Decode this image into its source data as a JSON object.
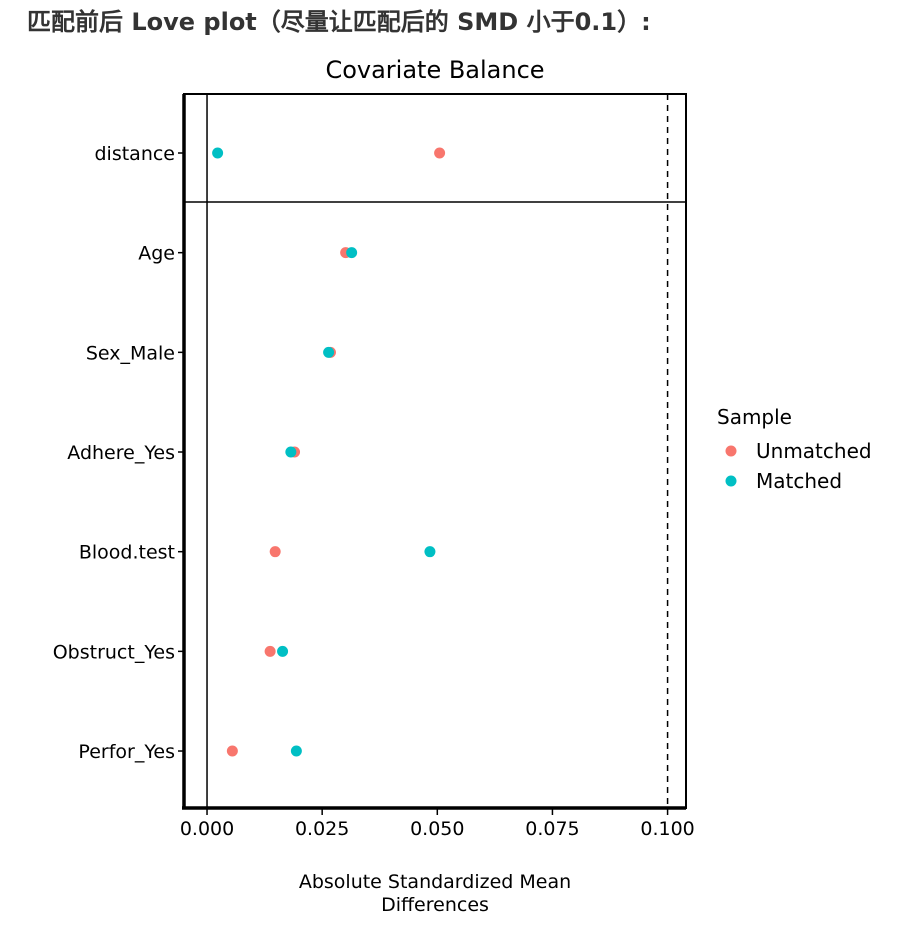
{
  "heading": "匹配前后 Love plot（尽量让匹配后的 SMD 小于0.1）:",
  "chart_data": {
    "type": "scatter",
    "title": "Covariate Balance",
    "xlabel_lines": [
      "Absolute Standardized Mean",
      "Differences"
    ],
    "ylabel": "",
    "xlim": [
      -0.005,
      0.104
    ],
    "xticks": [
      0.0,
      0.025,
      0.05,
      0.075,
      0.1
    ],
    "xtick_labels": [
      "0.000",
      "0.025",
      "0.050",
      "0.075",
      "0.100"
    ],
    "threshold": 0.1,
    "categories": [
      "distance",
      "Age",
      "Sex_Male",
      "Adhere_Yes",
      "Blood.test",
      "Obstruct_Yes",
      "Perfor_Yes"
    ],
    "series": [
      {
        "name": "Unmatched",
        "color": "#F8766D",
        "values": [
          0.0505,
          0.0301,
          0.0268,
          0.019,
          0.0148,
          0.0137,
          0.0055
        ]
      },
      {
        "name": "Matched",
        "color": "#00BFC4",
        "values": [
          0.0023,
          0.0314,
          0.0264,
          0.0182,
          0.0484,
          0.0164,
          0.0194
        ]
      }
    ],
    "legend": {
      "title": "Sample",
      "position": "right"
    },
    "grid": false
  }
}
